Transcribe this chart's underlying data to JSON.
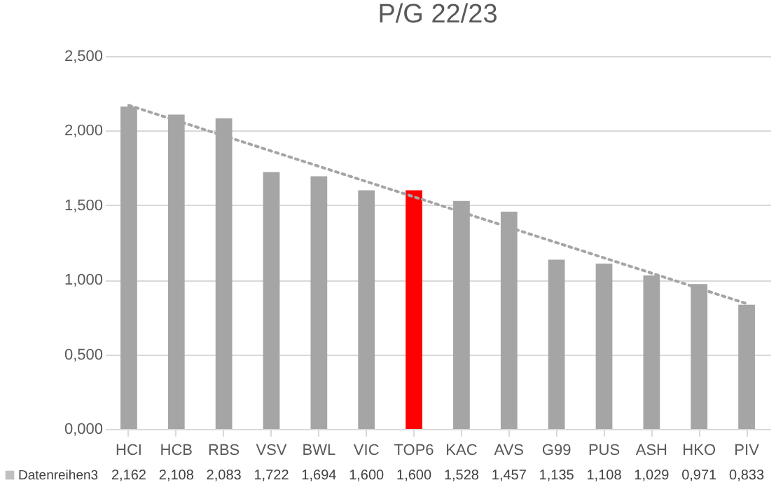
{
  "chart_data": {
    "type": "bar",
    "title": "P/G 22/23",
    "categories": [
      "HCI",
      "HCB",
      "RBS",
      "VSV",
      "BWL",
      "VIC",
      "TOP6",
      "KAC",
      "AVS",
      "G99",
      "PUS",
      "ASH",
      "HKO",
      "PIV"
    ],
    "series": [
      {
        "name": "Datenreihen3",
        "color": "#a5a5a5",
        "colors": [
          "#a5a5a5",
          "#a5a5a5",
          "#a5a5a5",
          "#a5a5a5",
          "#a5a5a5",
          "#a5a5a5",
          "#ff0000",
          "#a5a5a5",
          "#a5a5a5",
          "#a5a5a5",
          "#a5a5a5",
          "#a5a5a5",
          "#a5a5a5",
          "#a5a5a5"
        ],
        "values": [
          2.162,
          2.108,
          2.083,
          1.722,
          1.694,
          1.6,
          1.6,
          1.528,
          1.457,
          1.135,
          1.108,
          1.029,
          0.971,
          0.833
        ],
        "value_labels": [
          "2,162",
          "2,108",
          "2,083",
          "1,722",
          "1,694",
          "1,600",
          "1,600",
          "1,528",
          "1,457",
          "1,135",
          "1,108",
          "1,029",
          "0,971",
          "0,833"
        ]
      },
      {
        "type": "line",
        "color": "#a5a5a5",
        "line_style": "dotted",
        "x": [
          "HCI",
          "PIV"
        ],
        "values": [
          2.17,
          0.84
        ]
      }
    ],
    "ylim": [
      0,
      2.5
    ],
    "yticks": [
      {
        "value": 0,
        "label": "0,000"
      },
      {
        "value": 0.5,
        "label": "0,500"
      },
      {
        "value": 1,
        "label": "1,000"
      },
      {
        "value": 1.5,
        "label": "1,500"
      },
      {
        "value": 2,
        "label": "2,000"
      },
      {
        "value": 2.5,
        "label": "2,500"
      }
    ],
    "grid": "y",
    "legend": "bottom"
  }
}
